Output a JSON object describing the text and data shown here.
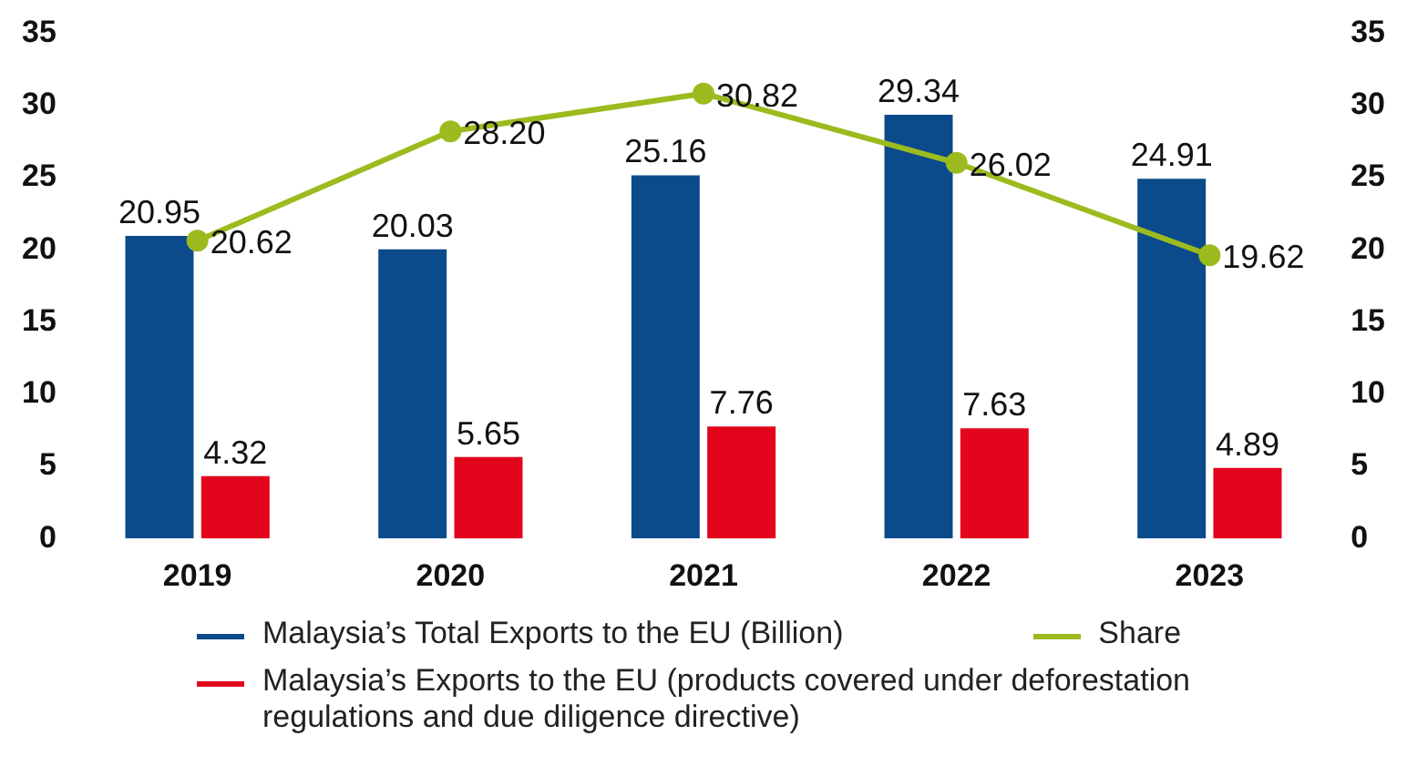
{
  "chart_data": {
    "type": "bar",
    "categories": [
      "2019",
      "2020",
      "2021",
      "2022",
      "2023"
    ],
    "series": [
      {
        "name": "Malaysia’s Total Exports to the EU (Billion)",
        "color": "#0b4a8b",
        "values": [
          20.95,
          20.03,
          25.16,
          29.34,
          24.91
        ],
        "value_labels": [
          "20.95",
          "20.03",
          "25.16",
          "29.34",
          "24.91"
        ]
      },
      {
        "name": "Malaysia’s Exports to the EU (products covered under deforestation regulations and due diligence directive)",
        "color": "#e3051b",
        "values": [
          4.32,
          5.65,
          7.76,
          7.63,
          4.89
        ],
        "value_labels": [
          "4.32",
          "5.65",
          "7.76",
          "7.63",
          "4.89"
        ]
      },
      {
        "name": "Share",
        "type": "line",
        "color": "#9bbb1e",
        "values": [
          20.62,
          28.2,
          30.82,
          26.02,
          19.62
        ],
        "value_labels": [
          "20.62",
          "28.20",
          "30.82",
          "26.02",
          "19.62"
        ]
      }
    ],
    "ylim": [
      0,
      35
    ],
    "yticks": [
      0,
      5,
      10,
      15,
      20,
      25,
      30,
      35
    ],
    "y2lim": [
      0,
      35
    ],
    "y2ticks": [
      0,
      5,
      10,
      15,
      20,
      25,
      30,
      35
    ],
    "grid": false,
    "legend": "bottom",
    "marker": "circle",
    "line_style": "solid"
  }
}
